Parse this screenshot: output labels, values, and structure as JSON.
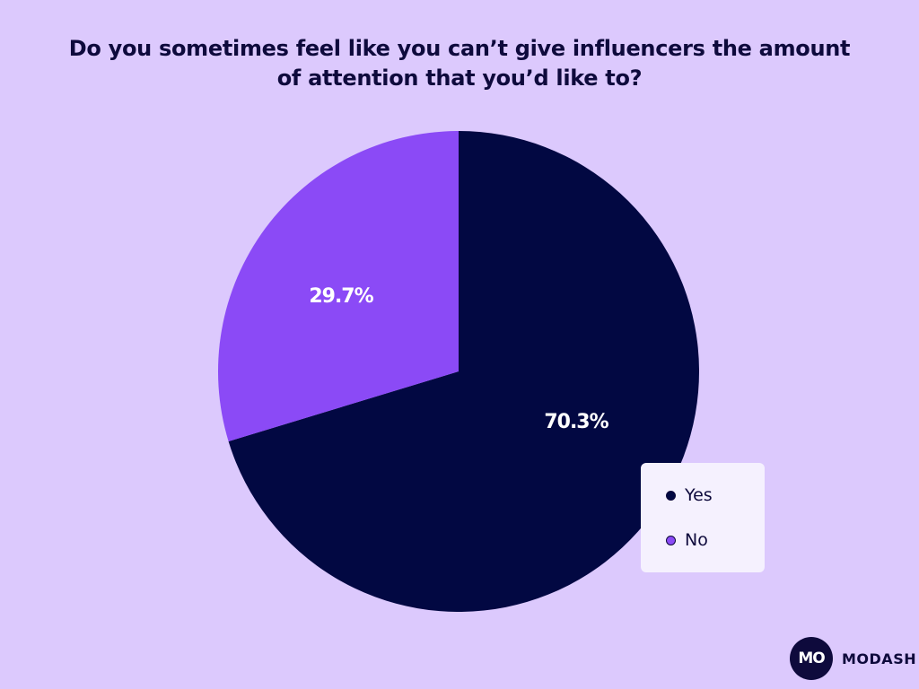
{
  "chart_data": {
    "type": "pie",
    "title": "Do you sometimes feel like you can’t give influencers the amount of attention that you’d like to?",
    "title_lines": [
      "Do you sometimes feel like you can’t give influencers the amount",
      "of attention that you’d like to?"
    ],
    "categories": [
      "Yes",
      "No"
    ],
    "values": [
      70.3,
      29.7
    ],
    "data_labels": [
      "70.3%",
      "29.7%"
    ],
    "colors": [
      "#020842",
      "#8B4AF6"
    ],
    "legend_placement": "bottom-right"
  },
  "brand": {
    "logo_text": "MO",
    "name": "MODASH"
  },
  "colors": {
    "background": "#DCC9FD",
    "legend_background": "#F5F1FE",
    "text": "#0E0A3C"
  }
}
